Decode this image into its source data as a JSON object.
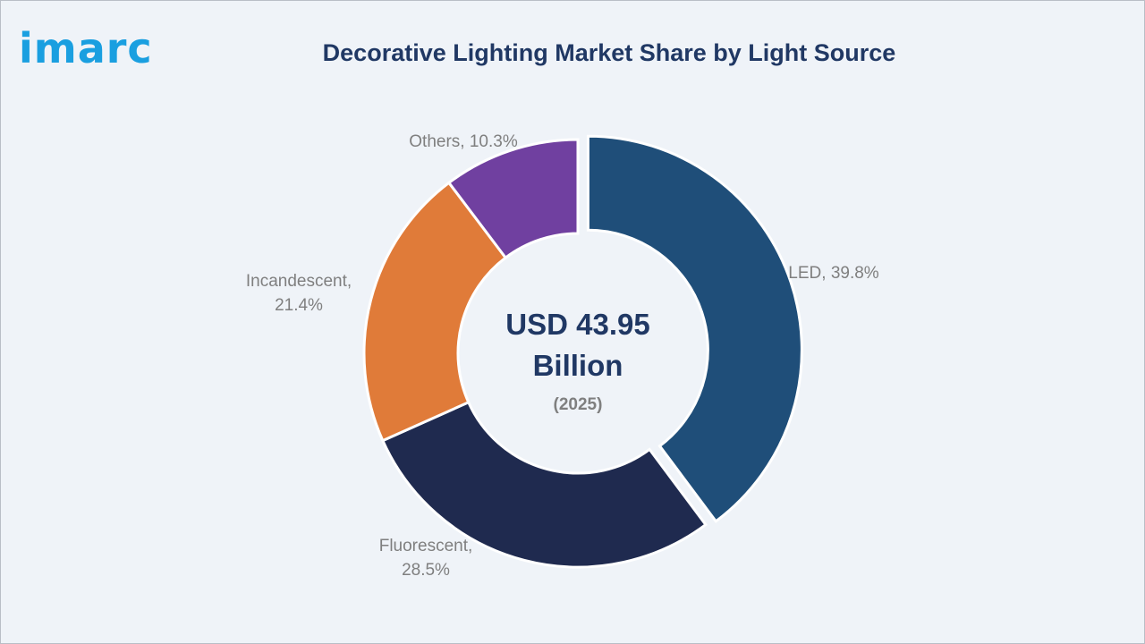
{
  "brand": {
    "logo_text": "imarc"
  },
  "chart_data": {
    "type": "pie",
    "variant": "donut",
    "title": "Decorative Lighting Market Share by Light Source",
    "categories": [
      "LED",
      "Fluorescent",
      "Incandescent",
      "Others"
    ],
    "values": [
      39.8,
      28.5,
      21.4,
      10.3
    ],
    "unit": "%",
    "slice_labels": [
      [
        "LED, 39.8%"
      ],
      [
        "Fluorescent,",
        "28.5%"
      ],
      [
        "Incandescent,",
        "21.4%"
      ],
      [
        "Others, 10.3%"
      ]
    ],
    "colors": [
      "#1f4e79",
      "#1f2a4f",
      "#e07b39",
      "#7040a0"
    ],
    "exploded_slice": "LED",
    "center_value_lines": [
      "USD 43.95",
      "Billion"
    ],
    "center_year": "(2025)"
  }
}
